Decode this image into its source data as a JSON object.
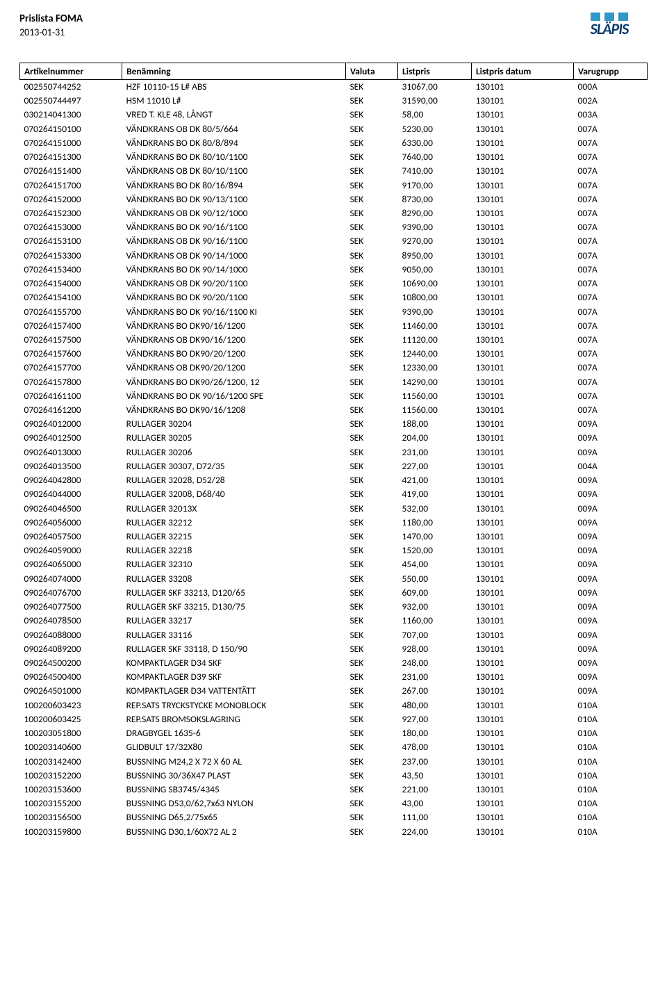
{
  "header": {
    "title": "Prislista FOMA",
    "date": "2013-01-31",
    "logo_text": "SLÄPIS",
    "logo_bar_color": "#2f99c7",
    "logo_text_color": "#0a3a6a"
  },
  "table": {
    "columns": [
      "Artikelnummer",
      "Benämning",
      "Valuta",
      "Listpris",
      "Listpris datum",
      "Varugrupp"
    ],
    "rows": [
      [
        "002550744252",
        "HZF 10110-15 L# ABS",
        "SEK",
        "31067,00",
        "130101",
        "000A"
      ],
      [
        "002550744497",
        "HSM 11010 L#",
        "SEK",
        "31590,00",
        "130101",
        "002A"
      ],
      [
        "030214041300",
        "VRED T. KLE 48, LÅNGT",
        "SEK",
        "58,00",
        "130101",
        "003A"
      ],
      [
        "070264150100",
        "VÄNDKRANS OB DK 80/5/664",
        "SEK",
        "5230,00",
        "130101",
        "007A"
      ],
      [
        "070264151000",
        "VÄNDKRANS BO DK 80/8/894",
        "SEK",
        "6330,00",
        "130101",
        "007A"
      ],
      [
        "070264151300",
        "VÄNDKRANS BO DK 80/10/1100",
        "SEK",
        "7640,00",
        "130101",
        "007A"
      ],
      [
        "070264151400",
        "VÄNDKRANS OB DK 80/10/1100",
        "SEK",
        "7410,00",
        "130101",
        "007A"
      ],
      [
        "070264151700",
        "VÄNDKRANS BO DK 80/16/894",
        "SEK",
        "9170,00",
        "130101",
        "007A"
      ],
      [
        "070264152000",
        "VÄNDKRANS BO DK 90/13/1100",
        "SEK",
        "8730,00",
        "130101",
        "007A"
      ],
      [
        "070264152300",
        "VÄNDKRANS OB DK 90/12/1000",
        "SEK",
        "8290,00",
        "130101",
        "007A"
      ],
      [
        "070264153000",
        "VÄNDKRANS BO DK 90/16/1100",
        "SEK",
        "9390,00",
        "130101",
        "007A"
      ],
      [
        "070264153100",
        "VÄNDKRANS OB DK 90/16/1100",
        "SEK",
        "9270,00",
        "130101",
        "007A"
      ],
      [
        "070264153300",
        "VÄNDKRANS OB DK 90/14/1000",
        "SEK",
        "8950,00",
        "130101",
        "007A"
      ],
      [
        "070264153400",
        "VÄNDKRANS BO DK 90/14/1000",
        "SEK",
        "9050,00",
        "130101",
        "007A"
      ],
      [
        "070264154000",
        "VÄNDKRANS OB DK 90/20/1100",
        "SEK",
        "10690,00",
        "130101",
        "007A"
      ],
      [
        "070264154100",
        "VÄNDKRANS BO DK 90/20/1100",
        "SEK",
        "10800,00",
        "130101",
        "007A"
      ],
      [
        "070264155700",
        "VÄNDKRANS BO DK 90/16/1100  KI",
        "SEK",
        "9390,00",
        "130101",
        "007A"
      ],
      [
        "070264157400",
        "VÄNDKRANS BO DK90/16/1200",
        "SEK",
        "11460,00",
        "130101",
        "007A"
      ],
      [
        "070264157500",
        "VÄNDKRANS OB DK90/16/1200",
        "SEK",
        "11120,00",
        "130101",
        "007A"
      ],
      [
        "070264157600",
        "VÄNDKRANS BO DK90/20/1200",
        "SEK",
        "12440,00",
        "130101",
        "007A"
      ],
      [
        "070264157700",
        "VÄNDKRANS OB DK90/20/1200",
        "SEK",
        "12330,00",
        "130101",
        "007A"
      ],
      [
        "070264157800",
        "VÄNDKRANS BO DK90/26/1200, 12",
        "SEK",
        "14290,00",
        "130101",
        "007A"
      ],
      [
        "070264161100",
        "VÄNDKRANS BO DK 90/16/1200 SPE",
        "SEK",
        "11560,00",
        "130101",
        "007A"
      ],
      [
        "070264161200",
        "VÄNDKRANS BO DK90/16/1208",
        "SEK",
        "11560,00",
        "130101",
        "007A"
      ],
      [
        "090264012000",
        "RULLAGER 30204",
        "SEK",
        "188,00",
        "130101",
        "009A"
      ],
      [
        "090264012500",
        "RULLAGER 30205",
        "SEK",
        "204,00",
        "130101",
        "009A"
      ],
      [
        "090264013000",
        "RULLAGER 30206",
        "SEK",
        "231,00",
        "130101",
        "009A"
      ],
      [
        "090264013500",
        "RULLAGER 30307, D72/35",
        "SEK",
        "227,00",
        "130101",
        "004A"
      ],
      [
        "090264042800",
        "RULLAGER 32028, D52/28",
        "SEK",
        "421,00",
        "130101",
        "009A"
      ],
      [
        "090264044000",
        "RULLAGER 32008, D68/40",
        "SEK",
        "419,00",
        "130101",
        "009A"
      ],
      [
        "090264046500",
        "RULLAGER 32013X",
        "SEK",
        "532,00",
        "130101",
        "009A"
      ],
      [
        "090264056000",
        "RULLAGER 32212",
        "SEK",
        "1180,00",
        "130101",
        "009A"
      ],
      [
        "090264057500",
        "RULLAGER 32215",
        "SEK",
        "1470,00",
        "130101",
        "009A"
      ],
      [
        "090264059000",
        "RULLAGER 32218",
        "SEK",
        "1520,00",
        "130101",
        "009A"
      ],
      [
        "090264065000",
        "RULLAGER 32310",
        "SEK",
        "454,00",
        "130101",
        "009A"
      ],
      [
        "090264074000",
        "RULLAGER 33208",
        "SEK",
        "550,00",
        "130101",
        "009A"
      ],
      [
        "090264076700",
        "RULLAGER SKF 33213, D120/65",
        "SEK",
        "609,00",
        "130101",
        "009A"
      ],
      [
        "090264077500",
        "RULLAGER SKF 33215, D130/75",
        "SEK",
        "932,00",
        "130101",
        "009A"
      ],
      [
        "090264078500",
        "RULLAGER 33217",
        "SEK",
        "1160,00",
        "130101",
        "009A"
      ],
      [
        "090264088000",
        "RULLAGER 33116",
        "SEK",
        "707,00",
        "130101",
        "009A"
      ],
      [
        "090264089200",
        "RULLAGER SKF 33118, D 150/90",
        "SEK",
        "928,00",
        "130101",
        "009A"
      ],
      [
        "090264500200",
        "KOMPAKTLAGER D34 SKF",
        "SEK",
        "248,00",
        "130101",
        "009A"
      ],
      [
        "090264500400",
        "KOMPAKTLAGER D39 SKF",
        "SEK",
        "231,00",
        "130101",
        "009A"
      ],
      [
        "090264501000",
        "KOMPAKTLAGER D34 VATTENTÄTT",
        "SEK",
        "267,00",
        "130101",
        "009A"
      ],
      [
        "100200603423",
        "REP.SATS TRYCKSTYCKE MONOBLOCK",
        "SEK",
        "480,00",
        "130101",
        "010A"
      ],
      [
        "100200603425",
        "REP.SATS BROMSOKSLAGRING",
        "SEK",
        "927,00",
        "130101",
        "010A"
      ],
      [
        "100203051800",
        "DRAGBYGEL  1635-6",
        "SEK",
        "180,00",
        "130101",
        "010A"
      ],
      [
        "100203140600",
        "GLIDBULT 17/32X80",
        "SEK",
        "478,00",
        "130101",
        "010A"
      ],
      [
        "100203142400",
        "BUSSNING M24,2  X 72 X 60  AL",
        "SEK",
        "237,00",
        "130101",
        "010A"
      ],
      [
        "100203152200",
        "BUSSNING 30/36X47  PLAST",
        "SEK",
        "43,50",
        "130101",
        "010A"
      ],
      [
        "100203153600",
        "BUSSNING SB3745/4345",
        "SEK",
        "221,00",
        "130101",
        "010A"
      ],
      [
        "100203155200",
        "BUSSNING D53,0/62,7x63  NYLON",
        "SEK",
        "43,00",
        "130101",
        "010A"
      ],
      [
        "100203156500",
        "BUSSNING D65,2/75x65",
        "SEK",
        "111,00",
        "130101",
        "010A"
      ],
      [
        "100203159800",
        "BUSSNING D30,1/60X72  AL 2",
        "SEK",
        "224,00",
        "130101",
        "010A"
      ]
    ]
  }
}
